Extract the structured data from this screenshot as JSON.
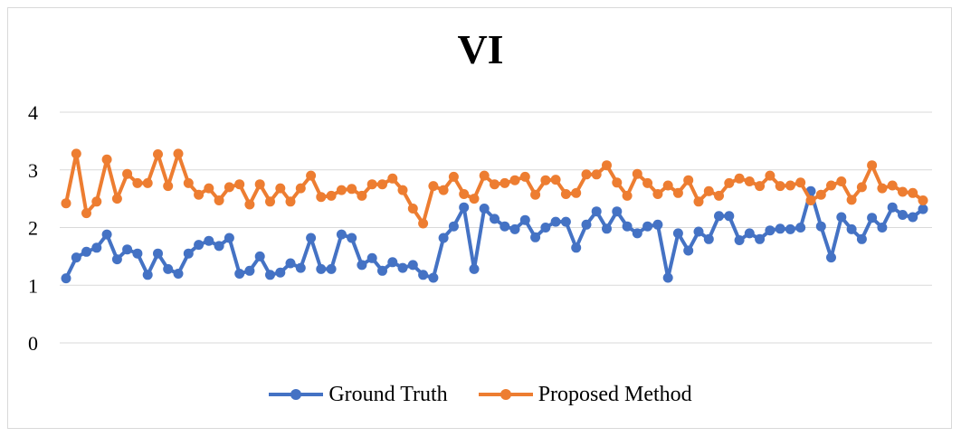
{
  "chart_data": {
    "type": "line",
    "title": "VI",
    "xlabel": "",
    "ylabel": "",
    "ylim": [
      0,
      4
    ],
    "yticks": [
      "0",
      "1",
      "2",
      "3",
      "4"
    ],
    "grid": true,
    "legend_position": "bottom",
    "series": [
      {
        "name": "Ground Truth",
        "color": "#4472c4",
        "values": [
          1.12,
          1.48,
          1.58,
          1.65,
          1.88,
          1.45,
          1.62,
          1.55,
          1.18,
          1.55,
          1.28,
          1.2,
          1.55,
          1.7,
          1.77,
          1.68,
          1.82,
          1.2,
          1.25,
          1.5,
          1.18,
          1.22,
          1.38,
          1.3,
          1.82,
          1.28,
          1.28,
          1.88,
          1.82,
          1.35,
          1.47,
          1.25,
          1.4,
          1.3,
          1.35,
          1.18,
          1.13,
          1.82,
          2.02,
          2.35,
          1.28,
          2.33,
          2.15,
          2.02,
          1.97,
          2.13,
          1.83,
          2.0,
          2.1,
          2.1,
          1.65,
          2.05,
          2.28,
          1.98,
          2.28,
          2.02,
          1.9,
          2.02,
          2.05,
          1.13,
          1.9,
          1.6,
          1.93,
          1.8,
          2.2,
          2.2,
          1.78,
          1.9,
          1.8,
          1.95,
          1.98,
          1.97,
          2.0,
          2.63,
          2.02,
          1.48,
          2.18,
          1.97,
          1.8,
          2.17,
          2.0,
          2.35,
          2.22,
          2.18,
          2.32
        ]
      },
      {
        "name": "Proposed Method",
        "color": "#ed7d31",
        "values": [
          2.42,
          3.28,
          2.25,
          2.45,
          3.18,
          2.5,
          2.93,
          2.77,
          2.77,
          3.27,
          2.72,
          3.28,
          2.77,
          2.57,
          2.68,
          2.47,
          2.7,
          2.75,
          2.4,
          2.75,
          2.45,
          2.68,
          2.45,
          2.68,
          2.9,
          2.53,
          2.55,
          2.65,
          2.67,
          2.55,
          2.75,
          2.75,
          2.85,
          2.65,
          2.33,
          2.07,
          2.72,
          2.65,
          2.88,
          2.58,
          2.5,
          2.9,
          2.75,
          2.77,
          2.82,
          2.88,
          2.57,
          2.82,
          2.83,
          2.58,
          2.6,
          2.92,
          2.92,
          3.08,
          2.78,
          2.55,
          2.93,
          2.77,
          2.58,
          2.73,
          2.6,
          2.82,
          2.45,
          2.63,
          2.55,
          2.77,
          2.85,
          2.8,
          2.72,
          2.9,
          2.72,
          2.73,
          2.78,
          2.47,
          2.57,
          2.73,
          2.8,
          2.48,
          2.7,
          3.08,
          2.68,
          2.73,
          2.62,
          2.6,
          2.47
        ]
      }
    ]
  }
}
